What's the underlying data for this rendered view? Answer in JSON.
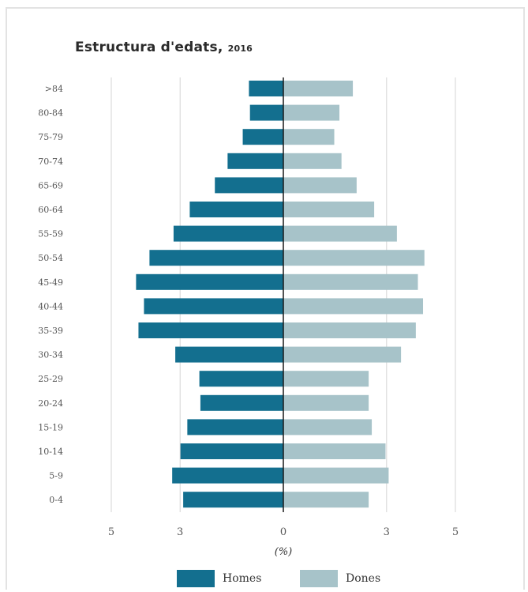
{
  "chart_data": {
    "type": "bar",
    "orientation": "horizontal",
    "subtype": "population-pyramid",
    "title": "Estructura d'edats",
    "title_year": "2016",
    "xlabel": "(%)",
    "xlim": [
      -5,
      5
    ],
    "x_ticks": [
      {
        "value": -5,
        "label": "5"
      },
      {
        "value": -3,
        "label": "3"
      },
      {
        "value": 0,
        "label": "0"
      },
      {
        "value": 3,
        "label": "3"
      },
      {
        "value": 5,
        "label": "5"
      }
    ],
    "grid": "vertical",
    "legend_position": "bottom",
    "categories": [
      ">84",
      "80-84",
      "75-79",
      "70-74",
      "65-69",
      "60-64",
      "55-59",
      "50-54",
      "45-49",
      "40-44",
      "35-39",
      "30-34",
      "25-29",
      "20-24",
      "15-19",
      "10-14",
      "5-9",
      "0-4"
    ],
    "series": [
      {
        "name": "Homes",
        "color": "#136f8f",
        "values": [
          1.0,
          0.97,
          1.18,
          1.62,
          1.99,
          2.72,
          3.19,
          3.89,
          4.28,
          4.05,
          4.21,
          3.14,
          2.44,
          2.41,
          2.79,
          2.99,
          3.23,
          2.91
        ]
      },
      {
        "name": "Dones",
        "color": "#a7c3c9",
        "values": [
          2.02,
          1.63,
          1.48,
          1.69,
          2.13,
          2.64,
          3.3,
          4.1,
          3.91,
          4.06,
          3.85,
          3.42,
          2.48,
          2.48,
          2.57,
          2.97,
          3.06,
          2.48
        ]
      }
    ]
  }
}
